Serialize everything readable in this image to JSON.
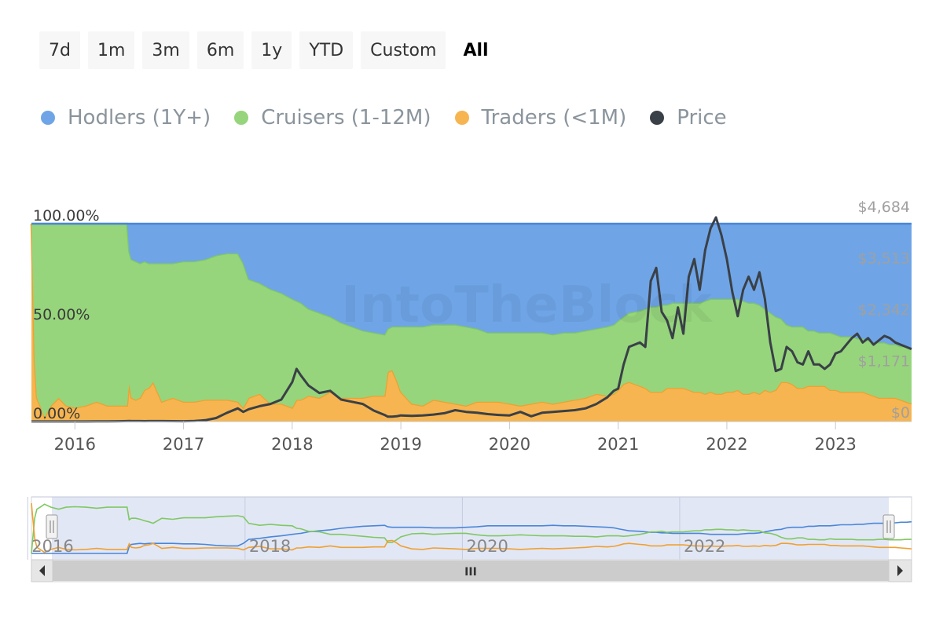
{
  "range_selector": {
    "buttons": [
      {
        "label": "7d",
        "active": false
      },
      {
        "label": "1m",
        "active": false
      },
      {
        "label": "3m",
        "active": false
      },
      {
        "label": "6m",
        "active": false
      },
      {
        "label": "1y",
        "active": false
      },
      {
        "label": "YTD",
        "active": false
      },
      {
        "label": "Custom",
        "active": false
      },
      {
        "label": "All",
        "active": true
      }
    ]
  },
  "watermark": "IntoTheBlock",
  "navigator": {
    "year_labels": [
      "2016",
      "2018",
      "2020",
      "2022"
    ],
    "scroll_grip": "III"
  },
  "chart_data": {
    "type": "area",
    "x_unit": "year",
    "xlim": [
      2015.6,
      2023.7
    ],
    "x_ticks": [
      "2016",
      "2017",
      "2018",
      "2019",
      "2020",
      "2021",
      "2022",
      "2023"
    ],
    "y_left": {
      "tick_labels": [
        "0.00%",
        "50.00%",
        "100.00%"
      ],
      "ylim": [
        0,
        100
      ],
      "unit": "%"
    },
    "y_right": {
      "tick_labels": [
        "$0",
        "$1,171",
        "$2,342",
        "$3,513",
        "$4,684"
      ],
      "ylim": [
        0,
        4684
      ],
      "unit": "USD"
    },
    "grid": true,
    "legend_position": "top-left",
    "x": [
      2015.6,
      2015.63,
      2015.65,
      2015.68,
      2015.72,
      2015.78,
      2015.85,
      2015.92,
      2016.0,
      2016.1,
      2016.2,
      2016.3,
      2016.4,
      2016.48,
      2016.5,
      2016.52,
      2016.56,
      2016.6,
      2016.64,
      2016.68,
      2016.72,
      2016.8,
      2016.9,
      2017.0,
      2017.1,
      2017.2,
      2017.3,
      2017.4,
      2017.5,
      2017.55,
      2017.6,
      2017.7,
      2017.8,
      2017.9,
      2018.0,
      2018.04,
      2018.08,
      2018.15,
      2018.25,
      2018.35,
      2018.45,
      2018.55,
      2018.65,
      2018.75,
      2018.85,
      2018.88,
      2018.92,
      2018.96,
      2019.0,
      2019.1,
      2019.2,
      2019.3,
      2019.4,
      2019.5,
      2019.6,
      2019.7,
      2019.8,
      2019.9,
      2020.0,
      2020.1,
      2020.2,
      2020.3,
      2020.4,
      2020.5,
      2020.6,
      2020.7,
      2020.8,
      2020.9,
      2020.96,
      2021.0,
      2021.05,
      2021.1,
      2021.2,
      2021.25,
      2021.3,
      2021.35,
      2021.4,
      2021.45,
      2021.5,
      2021.55,
      2021.6,
      2021.65,
      2021.7,
      2021.75,
      2021.8,
      2021.85,
      2021.9,
      2021.95,
      2022.0,
      2022.05,
      2022.1,
      2022.15,
      2022.2,
      2022.25,
      2022.3,
      2022.35,
      2022.4,
      2022.45,
      2022.5,
      2022.55,
      2022.6,
      2022.65,
      2022.7,
      2022.75,
      2022.8,
      2022.85,
      2022.9,
      2022.95,
      2023.0,
      2023.05,
      2023.1,
      2023.15,
      2023.2,
      2023.25,
      2023.3,
      2023.35,
      2023.4,
      2023.45,
      2023.5,
      2023.55,
      2023.6,
      2023.65,
      2023.7
    ],
    "series": [
      {
        "name": "Hodlers (1Y+)",
        "kind": "area",
        "axis": "left",
        "color": "#6fa5e6",
        "line_color": "#4a86d9",
        "values": [
          0,
          0,
          0,
          0,
          0,
          0,
          0,
          0,
          0,
          0,
          0,
          0,
          0,
          0,
          14,
          18,
          19,
          20,
          19,
          20,
          20,
          20,
          20,
          19,
          19,
          18,
          16,
          15,
          15,
          20,
          28,
          30,
          33,
          35,
          38,
          39,
          40,
          43,
          45,
          47,
          50,
          52,
          54,
          55,
          56,
          53,
          52,
          52,
          52,
          52,
          52,
          51,
          51,
          51,
          52,
          53,
          55,
          55,
          55,
          55,
          55,
          55,
          56,
          55,
          55,
          54,
          53,
          52,
          51,
          49,
          47,
          45,
          44,
          43,
          42,
          42,
          41,
          41,
          40,
          40,
          40,
          40,
          40,
          40,
          39,
          38,
          38,
          38,
          38,
          38,
          38,
          39,
          40,
          40,
          41,
          43,
          45,
          47,
          48,
          51,
          52,
          52,
          52,
          54,
          54,
          55,
          55,
          55,
          56,
          57,
          57,
          57,
          58,
          58,
          59,
          60,
          60,
          60,
          61,
          61,
          62,
          62,
          63
        ]
      },
      {
        "name": "Cruisers (1-12M)",
        "kind": "area",
        "axis": "left",
        "color": "#96d57c",
        "line_color": "#7fc862",
        "values": [
          0,
          70,
          88,
          92,
          98,
          92,
          88,
          92,
          93,
          92,
          90,
          92,
          92,
          92,
          67,
          70,
          70,
          68,
          65,
          63,
          60,
          70,
          68,
          71,
          71,
          71,
          73,
          74,
          75,
          73,
          60,
          56,
          58,
          56,
          55,
          50,
          49,
          44,
          43,
          38,
          38,
          36,
          34,
          32,
          31,
          22,
          22,
          27,
          33,
          39,
          40,
          38,
          39,
          40,
          40,
          37,
          35,
          35,
          36,
          37,
          36,
          35,
          35,
          35,
          34,
          34,
          33,
          35,
          35,
          35,
          34,
          35,
          38,
          40,
          43,
          43,
          44,
          42,
          43,
          43,
          43,
          44,
          45,
          45,
          47,
          47,
          48,
          48,
          47,
          47,
          46,
          47,
          46,
          45,
          45,
          41,
          40,
          37,
          32,
          29,
          29,
          31,
          31,
          28,
          28,
          27,
          27,
          29,
          28,
          28,
          28,
          28,
          27,
          27,
          27,
          27,
          28,
          28,
          27,
          27,
          27,
          28,
          28
        ]
      },
      {
        "name": "Traders (<1M)",
        "kind": "area",
        "axis": "left",
        "color": "#f6b551",
        "line_color": "#f0a030",
        "values": [
          100,
          30,
          12,
          8,
          2,
          8,
          12,
          8,
          7,
          8,
          10,
          8,
          8,
          8,
          19,
          12,
          11,
          12,
          16,
          17,
          20,
          10,
          12,
          10,
          10,
          11,
          11,
          11,
          10,
          7,
          12,
          14,
          9,
          9,
          7,
          11,
          11,
          13,
          12,
          15,
          12,
          12,
          12,
          13,
          13,
          25,
          26,
          21,
          15,
          9,
          8,
          11,
          10,
          9,
          8,
          10,
          10,
          10,
          9,
          8,
          9,
          10,
          9,
          10,
          11,
          12,
          14,
          13,
          14,
          16,
          19,
          20,
          18,
          17,
          15,
          15,
          15,
          17,
          17,
          17,
          17,
          16,
          15,
          15,
          14,
          15,
          14,
          14,
          15,
          15,
          16,
          14,
          14,
          15,
          14,
          16,
          15,
          16,
          20,
          20,
          19,
          17,
          17,
          18,
          18,
          18,
          18,
          16,
          16,
          15,
          15,
          15,
          15,
          15,
          14,
          13,
          12,
          12,
          12,
          12,
          11,
          10,
          9
        ]
      },
      {
        "name": "Price",
        "kind": "line",
        "axis": "right",
        "color": "#3a4047",
        "values": [
          1,
          1,
          1,
          1,
          1,
          1,
          1,
          1,
          1,
          2,
          3,
          5,
          8,
          10,
          12,
          11,
          11,
          10,
          9,
          10,
          11,
          10,
          9,
          8,
          12,
          30,
          80,
          200,
          300,
          220,
          280,
          350,
          400,
          500,
          900,
          1200,
          1050,
          820,
          650,
          700,
          500,
          450,
          400,
          250,
          150,
          110,
          110,
          120,
          140,
          130,
          140,
          160,
          190,
          260,
          220,
          200,
          170,
          150,
          140,
          220,
          120,
          200,
          220,
          240,
          260,
          300,
          400,
          550,
          700,
          750,
          1300,
          1700,
          1800,
          1700,
          3200,
          3500,
          2500,
          2300,
          1900,
          2600,
          2000,
          3300,
          3700,
          3000,
          3900,
          4400,
          4650,
          4250,
          3700,
          2950,
          2400,
          3000,
          3300,
          3000,
          3400,
          2800,
          1800,
          1150,
          1200,
          1700,
          1600,
          1350,
          1300,
          1600,
          1300,
          1300,
          1200,
          1300,
          1550,
          1600,
          1750,
          1900,
          2000,
          1800,
          1900,
          1750,
          1850,
          1950,
          1900,
          1800,
          1750,
          1700,
          1650
        ]
      }
    ]
  }
}
